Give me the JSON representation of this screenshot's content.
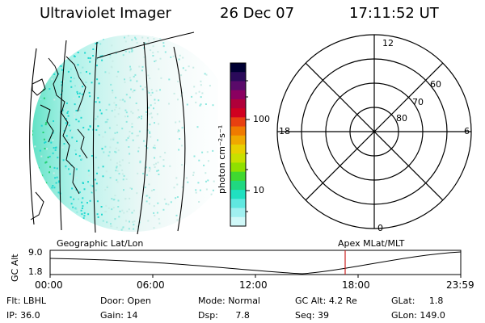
{
  "header": {
    "instrument": "Ultraviolet Imager",
    "date": "26 Dec 07",
    "time": "17:11:52 UT"
  },
  "colorbar": {
    "unit_label": "photon cm⁻²s⁻¹",
    "ticks": [
      "100",
      "10"
    ],
    "colors": [
      "#000033",
      "#2a0a5a",
      "#5a0a6a",
      "#8a0060",
      "#b0003a",
      "#d00020",
      "#e84010",
      "#f07a00",
      "#f0a800",
      "#e8d000",
      "#c8e000",
      "#90e000",
      "#40d830",
      "#20d880",
      "#20e0c0",
      "#60e8e0",
      "#a0f0f0",
      "#d0f8f8"
    ]
  },
  "polar_plot": {
    "hours": [
      "12",
      "18",
      "6",
      "0"
    ],
    "lat_labels": [
      "60",
      "70",
      "80"
    ]
  },
  "timeline": {
    "left_label": "Geographic Lat/Lon",
    "right_label": "Apex MLat/MLT",
    "axis_label": "GC Alt",
    "y_max_label": "9.0",
    "y_min_label": "1.8",
    "time_ticks": [
      "00:00",
      "06:00",
      "12:00",
      "18:00",
      "23:59"
    ],
    "current_marker_color": "#cc2222"
  },
  "footer": {
    "row1": [
      {
        "label": "Flt:",
        "value": "LBHL"
      },
      {
        "label": "Door:",
        "value": "Open"
      },
      {
        "label": "Mode:",
        "value": "Normal"
      },
      {
        "label": "GC Alt:",
        "value": "4.2 Re"
      },
      {
        "label": "GLat:",
        "value": "1.8"
      }
    ],
    "row2": [
      {
        "label": "IP:",
        "value": "36.0"
      },
      {
        "label": "Gain:",
        "value": "14"
      },
      {
        "label": "Dsp:",
        "value": "7.8"
      },
      {
        "label": "Seq:",
        "value": "39"
      },
      {
        "label": "GLon:",
        "value": "149.0"
      }
    ]
  }
}
